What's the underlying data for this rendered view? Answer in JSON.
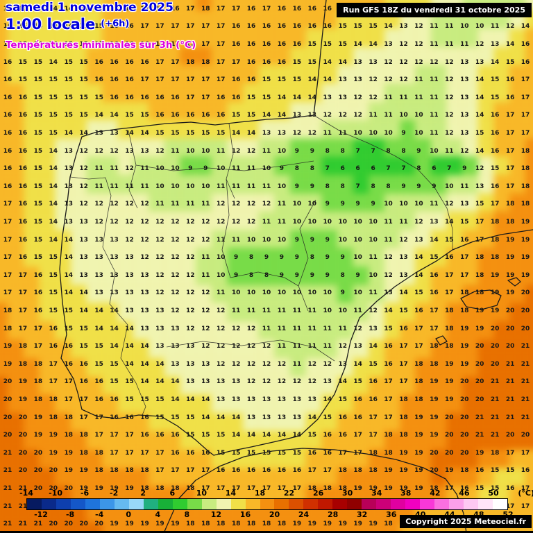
{
  "header": {
    "date": "samedi 1 novembre 2025",
    "time": "1:00 locale",
    "offset": "(+6h)",
    "subtitle": "Températures minimales sur 3h (°C)",
    "run_info": "Run GFS 18Z du vendredi 31 octobre 2025"
  },
  "footer": {
    "copyright": "Copyright 2025 Meteociel.fr"
  },
  "legend": {
    "unit": "(°C)",
    "min": -14,
    "max": 52,
    "step": 2,
    "top_labels": [
      -14,
      -10,
      -6,
      -2,
      2,
      6,
      10,
      14,
      18,
      22,
      26,
      30,
      34,
      38,
      42,
      46,
      50
    ],
    "bottom_labels": [
      -12,
      -8,
      -4,
      0,
      4,
      8,
      12,
      16,
      20,
      24,
      28,
      32,
      36,
      40,
      44,
      48,
      52
    ],
    "colors": [
      "#061a60",
      "#0a2a8a",
      "#0e3fae",
      "#1457c8",
      "#1f74dc",
      "#3c96e8",
      "#66baf0",
      "#98d8f8",
      "#20b080",
      "#18b038",
      "#30cc30",
      "#78dc48",
      "#c8ec80",
      "#f0f4b0",
      "#f0e048",
      "#f8b828",
      "#f49010",
      "#e87000",
      "#dc5000",
      "#d03000",
      "#c01800",
      "#a80000",
      "#900000",
      "#b80058",
      "#cc0078",
      "#e000a0",
      "#f000c0",
      "#f838d8",
      "#fa70e0",
      "#fca0ea",
      "#fec8f2",
      "#ffe4f8",
      "#ffffff"
    ]
  },
  "chart_data": {
    "type": "heatmap",
    "title": "Températures minimales sur 3h (°C)",
    "model_run": "Run GFS 18Z du vendredi 31 octobre 2025",
    "valid_time": "samedi 1 novembre 2025 1:00 locale (+6h)",
    "units": "°C",
    "region": "Iberian Peninsula",
    "legend_range": [
      -14,
      52
    ],
    "grid_cols": 35,
    "grid_rows": 30,
    "values_rows": [
      "16 15 15 14 14 15 15 16 16 17 17 16 17 18 17 17 16 17 16 16 16 16 16 16 17 15 14 14 13 12 11 11 10 11 13",
      "16 15 14 14 14 15 15 16 16 17 17 17 17 17 17 16 16 16 16 16 16 16 15 15 15 14 13 12 11 11 10 10 11 12 14",
      "16 15 14 14 15 15 15 16 16 16 16 17 17 17 17 16 16 16 16 16 15 15 15 14 14 13 12 12 11 11 11 12 13 14 16",
      "16 15 15 14 15 15 16 16 16 16 17 17 18 18 17 17 16 16 16 15 15 14 14 13 13 12 12 12 12 12 13 13 14 15 16",
      "16 15 15 15 15 15 16 16 16 17 17 17 17 17 17 16 16 15 15 15 14 14 13 13 12 12 12 11 11 12 13 14 15 16 17",
      "16 16 15 15 15 15 15 16 16 16 16 16 17 17 16 16 15 15 14 14 14 13 13 12 12 11 11 11 11 12 13 14 15 16 17",
      "16 16 15 15 15 15 14 14 15 15 16 16 16 16 16 15 15 14 14 13 13 12 12 12 11 11 10 10 11 12 13 14 16 17 17",
      "16 16 15 15 14 14 13 13 14 14 15 15 15 15 15 14 14 13 13 12 12 11 11 10 10 10 9 10 11 12 13 15 16 17 17",
      "16 16 15 14 13 12 12 12 13 13 12 11 10 10 11 12 12 11 10 9 9 8 8 7 7 8 8 9 10 11 12 14 16 17 18",
      "16 16 15 14 13 12 11 11 12 11 10 10 9 9 10 11 11 10 9 8 8 7 6 6 6 7 7 8 6 7 9 12 15 17 18",
      "16 16 15 14 13 12 11 11 11 11 10 10 10 10 11 11 11 11 10 9 9 8 8 7 8 8 9 9 9 10 11 13 16 17 18",
      "17 16 15 14 13 12 12 12 12 12 11 11 11 11 12 12 12 12 11 10 10 9 9 9 9 10 10 10 11 12 13 15 17 18 18",
      "17 16 15 14 13 13 12 12 12 12 12 12 12 12 12 12 12 11 11 10 10 10 10 10 10 11 11 12 13 14 15 17 18 18 19",
      "17 16 15 14 14 13 13 13 12 12 12 12 12 12 11 11 10 10 10 9 9 9 10 10 10 11 12 13 14 15 16 17 18 19 19",
      "17 16 15 15 14 13 13 13 13 12 12 12 12 11 10 9 8 9 9 9 8 9 9 10 11 12 13 14 15 16 17 18 18 19 19",
      "17 17 16 15 14 13 13 13 13 13 12 12 12 11 10 9 8 8 9 9 9 9 8 9 10 12 13 14 16 17 17 18 19 19 19",
      "17 17 16 15 14 14 13 13 13 13 12 12 12 12 11 10 10 10 10 10 10 10 9 10 11 13 14 15 16 17 18 18 19 19 20",
      "18 17 16 15 15 14 14 14 13 13 13 12 12 12 12 11 11 11 11 11 11 10 10 11 12 14 15 16 17 18 18 19 19 20 20",
      "18 17 17 16 15 15 14 14 14 13 13 13 12 12 12 12 12 11 11 11 11 11 11 12 13 15 16 17 17 18 19 19 20 20 20",
      "19 18 17 16 16 15 15 14 14 14 13 13 13 12 12 12 12 12 11 11 11 11 12 13 14 16 17 17 18 18 19 20 20 20 21",
      "19 18 18 17 16 16 15 15 14 14 14 13 13 13 12 12 12 12 12 11 12 12 13 14 15 16 17 18 18 19 19 20 20 21 21",
      "20 19 18 17 17 16 16 15 15 14 14 14 13 13 13 13 12 12 12 12 12 13 14 15 16 17 17 18 19 19 20 20 21 21 21",
      "20 19 18 18 17 17 16 16 15 15 15 14 14 14 13 13 13 13 13 13 13 14 15 16 16 17 18 18 19 19 20 20 21 21 21",
      "20 20 19 18 18 17 17 16 16 16 15 15 15 14 14 14 13 13 13 13 14 15 16 16 17 17 18 19 19 20 20 21 21 21 21",
      "20 20 19 19 18 18 17 17 17 16 16 16 15 15 15 14 14 14 14 14 15 16 16 17 17 18 18 19 19 20 20 21 21 20 20",
      "21 20 20 19 19 18 18 17 17 17 17 16 16 16 15 15 15 15 15 15 16 16 17 17 18 18 19 19 20 20 20 19 18 17 17",
      "21 20 20 20 19 19 18 18 18 18 17 17 17 17 16 16 16 16 16 16 17 17 18 18 18 19 19 19 20 19 18 16 15 15 16",
      "21 21 20 20 20 19 19 19 19 18 18 18 18 17 17 17 17 17 17 17 18 18 18 19 19 19 19 19 18 17 16 15 15 16 17",
      "21 21 20 20 20 20 19 19 19 19 19 18 18 18 18 18 18 18 18 18 18 19 19 19 19 19 18 17 16 16 16 16 16 17 17",
      "21 21 21 20 20 20 20 19 19 19 19 19 18 18 18 18 18 18 18 19 19 19 19 19 19 18 17 16 16 16 16 17 17 17 17"
    ]
  }
}
